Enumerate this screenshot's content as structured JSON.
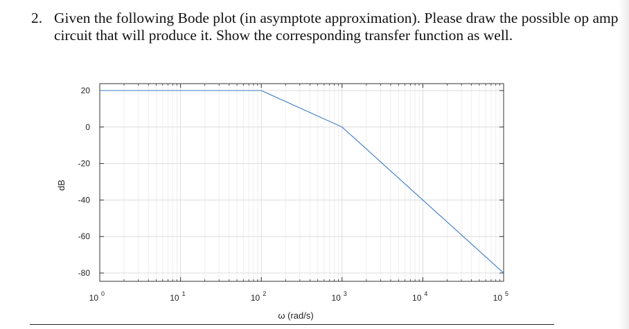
{
  "question": {
    "number": "2.",
    "text": "Given the following Bode plot (in asymptote approximation). Please draw the possible op amp circuit that will produce it. Show the corresponding transfer function as well."
  },
  "chart_data": {
    "type": "line",
    "xlabel": "ω (rad/s)",
    "ylabel": "dB",
    "xscale": "log",
    "xlim": [
      1,
      100000
    ],
    "ylim": [
      -80,
      20
    ],
    "grid": true,
    "x_ticks": [
      {
        "base": "10",
        "exp": "0",
        "value": 1
      },
      {
        "base": "10",
        "exp": "1",
        "value": 10
      },
      {
        "base": "10",
        "exp": "2",
        "value": 100
      },
      {
        "base": "10",
        "exp": "3",
        "value": 1000
      },
      {
        "base": "10",
        "exp": "4",
        "value": 10000
      },
      {
        "base": "10",
        "exp": "5",
        "value": 100000
      }
    ],
    "y_ticks": [
      "20",
      "0",
      "-20",
      "-40",
      "-60",
      "-80"
    ],
    "series": [
      {
        "color": "#3b78c2",
        "x": [
          1,
          100,
          1000,
          100000
        ],
        "y": [
          20,
          20,
          0,
          -80
        ]
      }
    ]
  }
}
